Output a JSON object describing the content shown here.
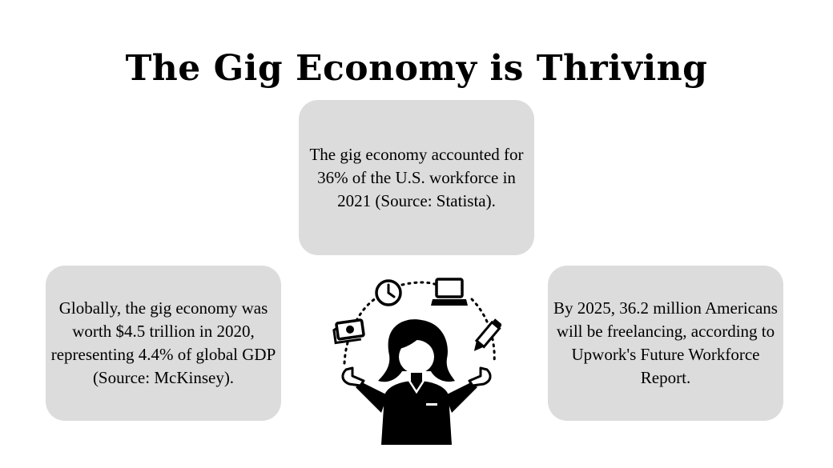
{
  "title": "The Gig Economy is Thriving",
  "cards": {
    "top": "The gig economy accounted for 36% of the U.S. workforce in 2021 (Source: Statista).",
    "left": "Globally, the gig economy was worth $4.5 trillion in 2020, representing 4.4% of global GDP (Source: McKinsey).",
    "right": "By 2025, 36.2 million Americans will be freelancing, according to Upwork's Future Workforce Report."
  },
  "colors": {
    "card_background": "#dcdcdc",
    "text": "#000000",
    "page_background": "#ffffff"
  },
  "illustration": {
    "icons": [
      "clock-icon",
      "laptop-icon",
      "money-icon",
      "pen-icon",
      "freelancer-person-icon"
    ]
  }
}
